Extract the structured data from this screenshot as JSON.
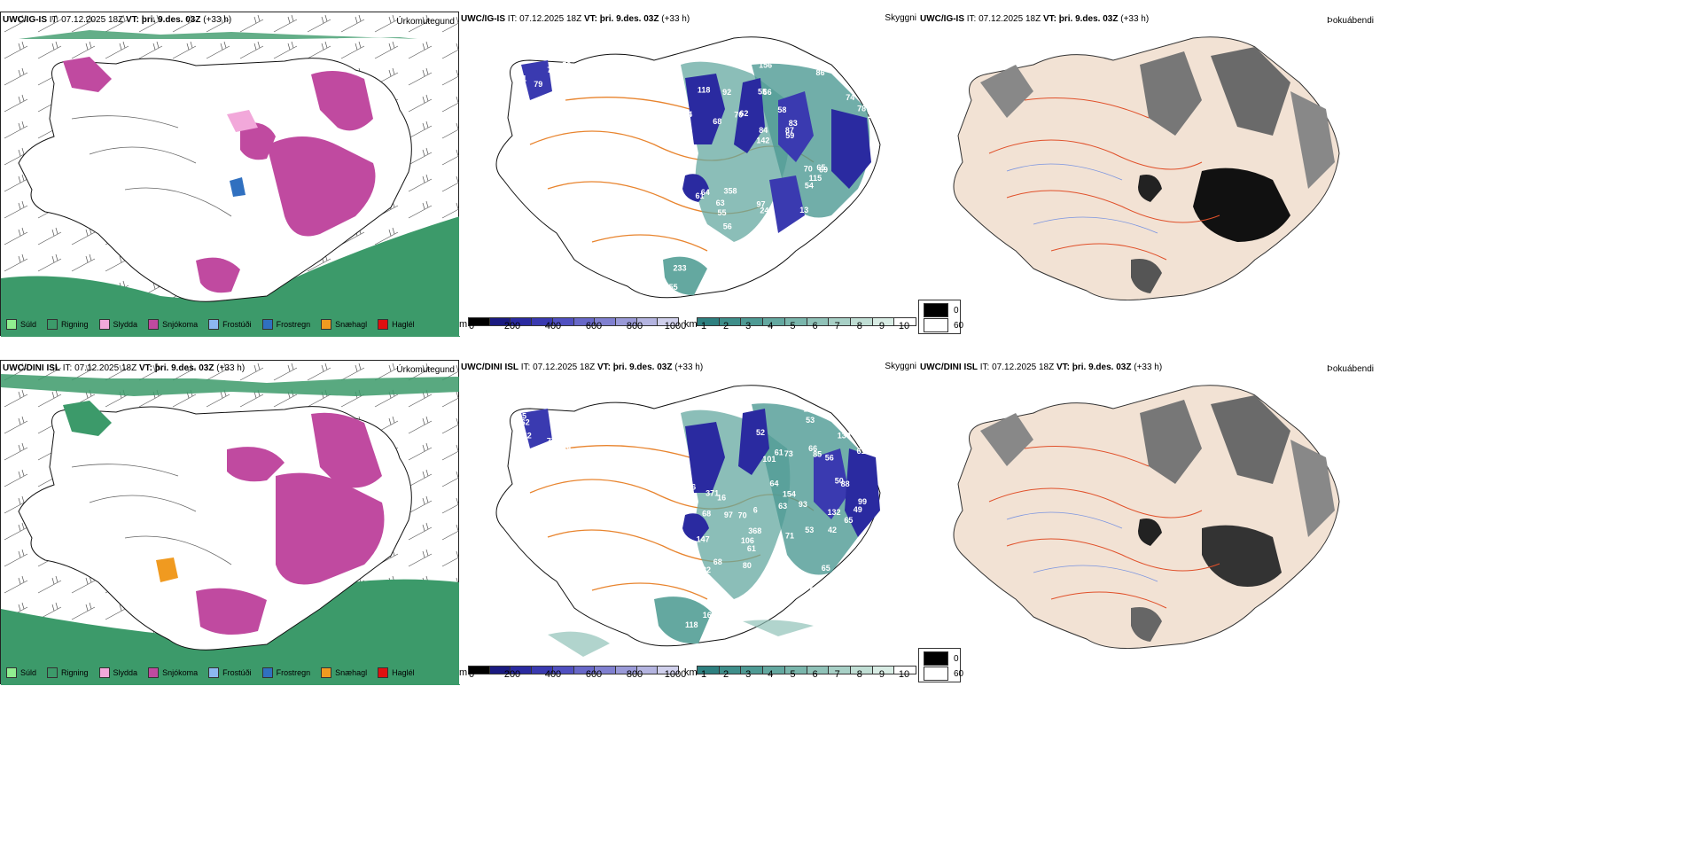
{
  "rows": [
    {
      "model": "UWC/IG-IS",
      "it": "IT: 07.12.2025 18Z",
      "vt": "VT: þri. 9.des. 03Z",
      "lead": "(+33 h)",
      "cloud_labels": [
        "51",
        "61",
        "59",
        "79",
        "77",
        "53",
        "55",
        "58",
        "64",
        "62",
        "42",
        "55",
        "66",
        "83",
        "69",
        "118",
        "156",
        "163",
        "70",
        "78",
        "142",
        "97",
        "84",
        "92",
        "86",
        "358",
        "158",
        "152",
        "65",
        "71",
        "70",
        "68",
        "54",
        "56",
        "137",
        "87",
        "85",
        "245",
        "59",
        "61",
        "74",
        "68",
        "115",
        "13",
        "63",
        "355",
        "112",
        "233",
        "84"
      ]
    },
    {
      "model": "UWC/DINI ISL",
      "it": "IT: 07.12.2025 18Z",
      "vt": "VT: þri. 9.des. 03Z",
      "lead": "(+33 h)",
      "cloud_labels": [
        "58",
        "62",
        "77",
        "95",
        "69",
        "62",
        "68",
        "70",
        "56",
        "61",
        "85",
        "82",
        "61",
        "52",
        "93",
        "147",
        "132",
        "154",
        "66",
        "82",
        "90",
        "73",
        "50",
        "104",
        "99",
        "371",
        "97",
        "63",
        "64",
        "56",
        "53",
        "68",
        "106",
        "66",
        "101",
        "65",
        "49",
        "65",
        "130",
        "88",
        "368",
        "71",
        "80",
        "143",
        "6",
        "16",
        "61",
        "53",
        "118",
        "167",
        "42",
        "88"
      ]
    }
  ],
  "panel_titles": {
    "precip": "Úrkomutegund",
    "visibility": "Skyggni",
    "fog": "Þokuábendi"
  },
  "precip_legend": [
    {
      "label": "Súld",
      "color": "#90ee90"
    },
    {
      "label": "Rigning",
      "color": "#3c9a6a"
    },
    {
      "label": "Slydda",
      "color": "#f2a8da"
    },
    {
      "label": "Snjókoma",
      "color": "#c04aa0"
    },
    {
      "label": "Frostúði",
      "color": "#8cb8f0"
    },
    {
      "label": "Frostregn",
      "color": "#3070c0"
    },
    {
      "label": "Snæhagl",
      "color": "#f09a20"
    },
    {
      "label": "Haglél",
      "color": "#e01010"
    }
  ],
  "ceiling_bar": {
    "unit": "m",
    "ticks": [
      "0",
      "200",
      "400",
      "600",
      "800",
      "1000"
    ],
    "colors": [
      "#000000",
      "#1a1a80",
      "#2a2aa0",
      "#3a3ab0",
      "#5050c0",
      "#6868c8",
      "#8080d0",
      "#9a9ad8",
      "#b4b4e0",
      "#d0d0ec"
    ]
  },
  "visibility_bar": {
    "unit": "km",
    "ticks": [
      "1",
      "2",
      "3",
      "4",
      "5",
      "6",
      "7",
      "8",
      "9",
      "10"
    ],
    "colors": [
      "#2e8080",
      "#3e8e8a",
      "#4e9a94",
      "#64a8a0",
      "#7ab6ac",
      "#90c2b8",
      "#a8d0c6",
      "#c0ded4",
      "#d8ece4",
      "#ffffff"
    ]
  },
  "fog_key": [
    {
      "label": "0",
      "color": "#000000"
    },
    {
      "label": "60",
      "color": "#ffffff"
    }
  ]
}
